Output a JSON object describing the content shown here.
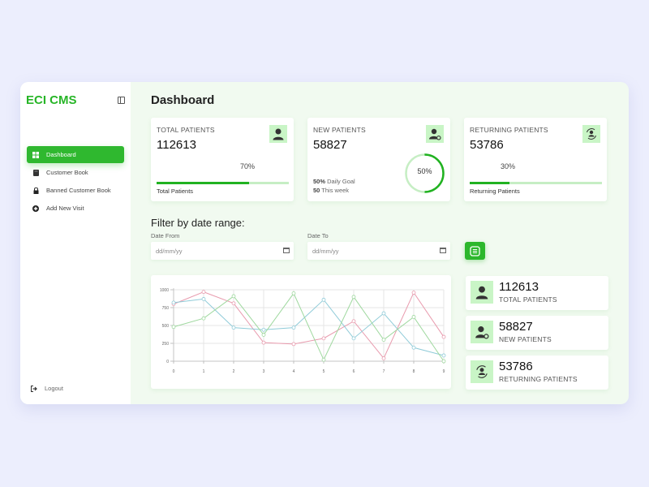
{
  "app": {
    "title": "ECI CMS"
  },
  "sidebar": {
    "items": [
      {
        "label": "Dashboard",
        "icon": "grid-icon",
        "active": true
      },
      {
        "label": "Customer Book",
        "icon": "book-icon",
        "active": false
      },
      {
        "label": "Banned Customer Book",
        "icon": "lock-icon",
        "active": false
      },
      {
        "label": "Add New Visit",
        "icon": "plus-circle-icon",
        "active": false
      }
    ],
    "logout_label": "Logout"
  },
  "header": {
    "title": "Dashboard"
  },
  "stats": {
    "total": {
      "title": "TOTAL PATIENTS",
      "value": "112613",
      "percent": "70%",
      "percent_num": 70,
      "caption": "Total Patients",
      "icon": "user-icon"
    },
    "new": {
      "title": "NEW PATIENTS",
      "value": "58827",
      "percent": "50%",
      "percent_num": 50,
      "goal_pct": "50%",
      "goal_label": "Daily Goal",
      "week_count": "50",
      "week_label": "This week",
      "icon": "user-add-icon"
    },
    "returning": {
      "title": "RETURNING PATIENTS",
      "value": "53786",
      "percent": "30%",
      "percent_num": 30,
      "caption": "Returning Patients",
      "icon": "user-refresh-icon"
    }
  },
  "filter": {
    "title": "Filter by date range:",
    "from_label": "Date From",
    "to_label": "Date To",
    "from_placeholder": "dd/mm/yy",
    "to_placeholder": "dd/mm/yy"
  },
  "summary": [
    {
      "value": "112613",
      "label": "TOTAL PATIENTS",
      "icon": "user-icon"
    },
    {
      "value": "58827",
      "label": "NEW PATIENTS",
      "icon": "user-add-icon"
    },
    {
      "value": "53786",
      "label": "RETURNING PATIENTS",
      "icon": "user-refresh-icon"
    }
  ],
  "colors": {
    "accent": "#2fb82f",
    "accent_light": "#c9f5c6",
    "bg": "#f1faf0"
  },
  "chart_data": {
    "type": "line",
    "title": "",
    "xlabel": "",
    "ylabel": "",
    "x": [
      0,
      1,
      2,
      3,
      4,
      5,
      6,
      7,
      8,
      9
    ],
    "y_ticks": [
      0,
      250,
      500,
      750,
      1000
    ],
    "ylim": [
      0,
      1000
    ],
    "grid": true,
    "legend": "none",
    "series": [
      {
        "name": "pink",
        "color": "#e89aad",
        "values": [
          800,
          970,
          810,
          260,
          240,
          320,
          560,
          40,
          960,
          340
        ]
      },
      {
        "name": "blue",
        "color": "#8fcbd8",
        "values": [
          820,
          870,
          470,
          440,
          470,
          860,
          320,
          670,
          190,
          80
        ]
      },
      {
        "name": "green",
        "color": "#9ed89e",
        "values": [
          480,
          600,
          910,
          370,
          950,
          20,
          900,
          300,
          620,
          0
        ]
      }
    ]
  }
}
